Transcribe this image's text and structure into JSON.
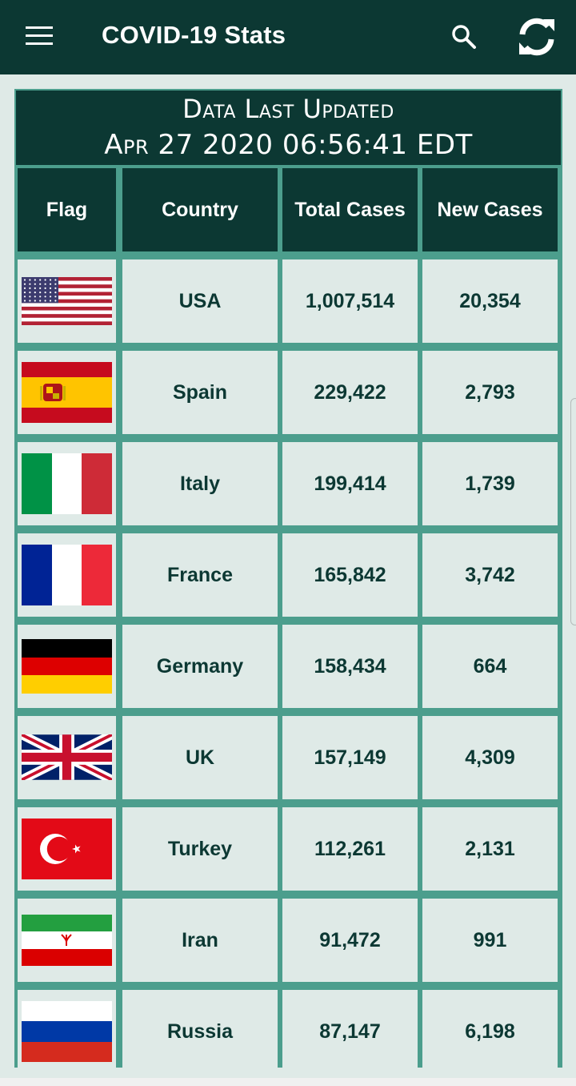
{
  "appbar": {
    "title": "COVID-19 Stats",
    "icons": [
      "menu-icon",
      "search-icon",
      "refresh-icon"
    ]
  },
  "updated": {
    "line1": "Data Last Updated",
    "line2": "Apr 27 2020 06:56:41 EDT"
  },
  "table": {
    "headers": [
      "Flag",
      "Country",
      "Total Cases",
      "New Cases"
    ],
    "rows": [
      {
        "flag": "usa",
        "country": "USA",
        "total": "1,007,514",
        "new": "20,354"
      },
      {
        "flag": "spain",
        "country": "Spain",
        "total": "229,422",
        "new": "2,793"
      },
      {
        "flag": "italy",
        "country": "Italy",
        "total": "199,414",
        "new": "1,739"
      },
      {
        "flag": "france",
        "country": "France",
        "total": "165,842",
        "new": "3,742"
      },
      {
        "flag": "germany",
        "country": "Germany",
        "total": "158,434",
        "new": "664"
      },
      {
        "flag": "uk",
        "country": "UK",
        "total": "157,149",
        "new": "4,309"
      },
      {
        "flag": "turkey",
        "country": "Turkey",
        "total": "112,261",
        "new": "2,131"
      },
      {
        "flag": "iran",
        "country": "Iran",
        "total": "91,472",
        "new": "991"
      },
      {
        "flag": "russia",
        "country": "Russia",
        "total": "87,147",
        "new": "6,198"
      }
    ]
  },
  "colors": {
    "primary": "#0c3833",
    "grid": "#4c9e8d",
    "cell": "#dfeae7"
  }
}
